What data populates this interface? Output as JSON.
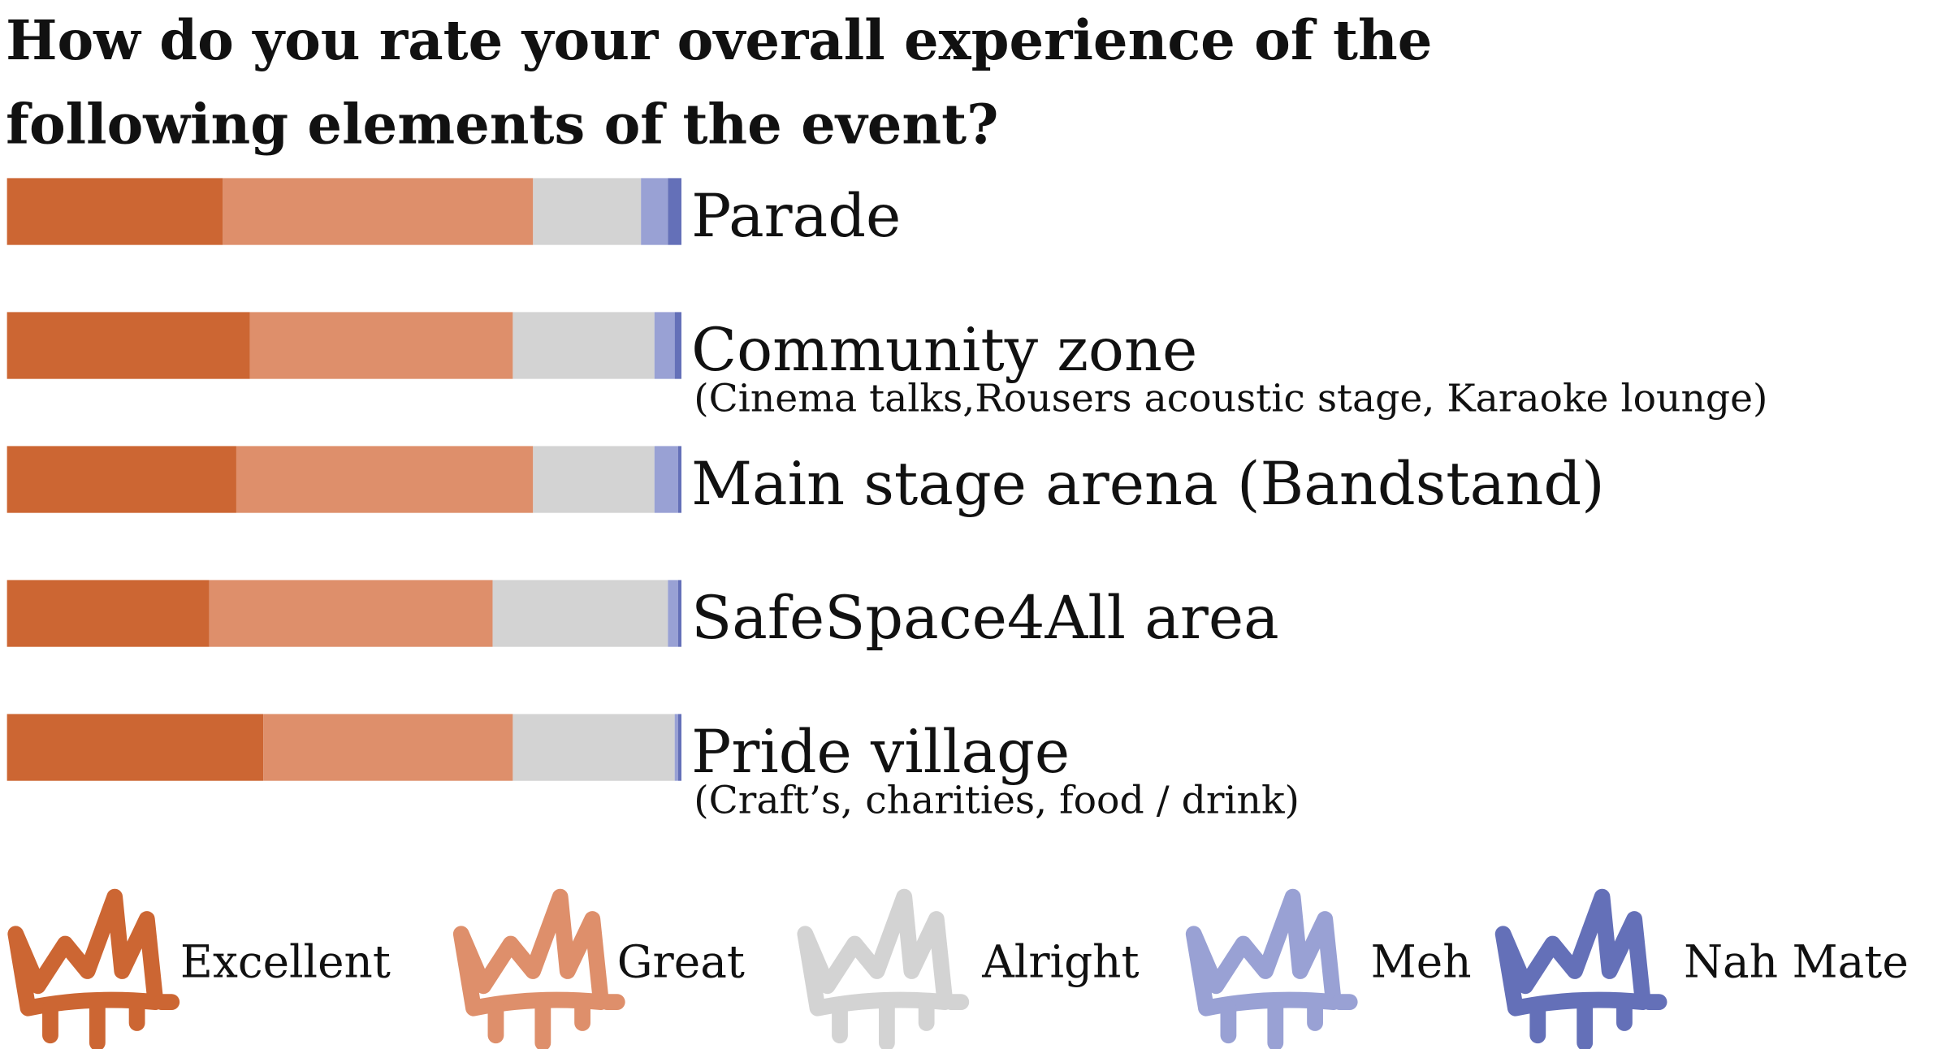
{
  "chart_data": {
    "type": "stacked-bar-horizontal",
    "title": "How do you rate your overall experience of the following elements of the event?",
    "categories": [
      "Parade",
      "Community zone",
      "Main stage arena (Bandstand)",
      "SafeSpace4All area",
      "Pride village"
    ],
    "category_subtitles": [
      null,
      "(Cinema talks,Rousers acoustic stage, Karaoke lounge)",
      null,
      null,
      "(Craft’s, charities, food / drink)"
    ],
    "xlim": [
      0,
      100
    ],
    "series": [
      {
        "name": "Excellent",
        "color": "#cc6633",
        "values": [
          32,
          36,
          34,
          30,
          38
        ]
      },
      {
        "name": "Great",
        "color": "#de8f6b",
        "values": [
          46,
          39,
          44,
          42,
          37
        ]
      },
      {
        "name": "Alright",
        "color": "#d3d3d3",
        "values": [
          16,
          21,
          18,
          26,
          24
        ]
      },
      {
        "name": "Meh",
        "color": "#99a1d4",
        "values": [
          4,
          3,
          3.5,
          1.5,
          0.5
        ]
      },
      {
        "name": "Nah Mate",
        "color": "#6470b8",
        "values": [
          2,
          1,
          0.5,
          0.5,
          0.5
        ]
      }
    ],
    "legend": "bottom"
  }
}
